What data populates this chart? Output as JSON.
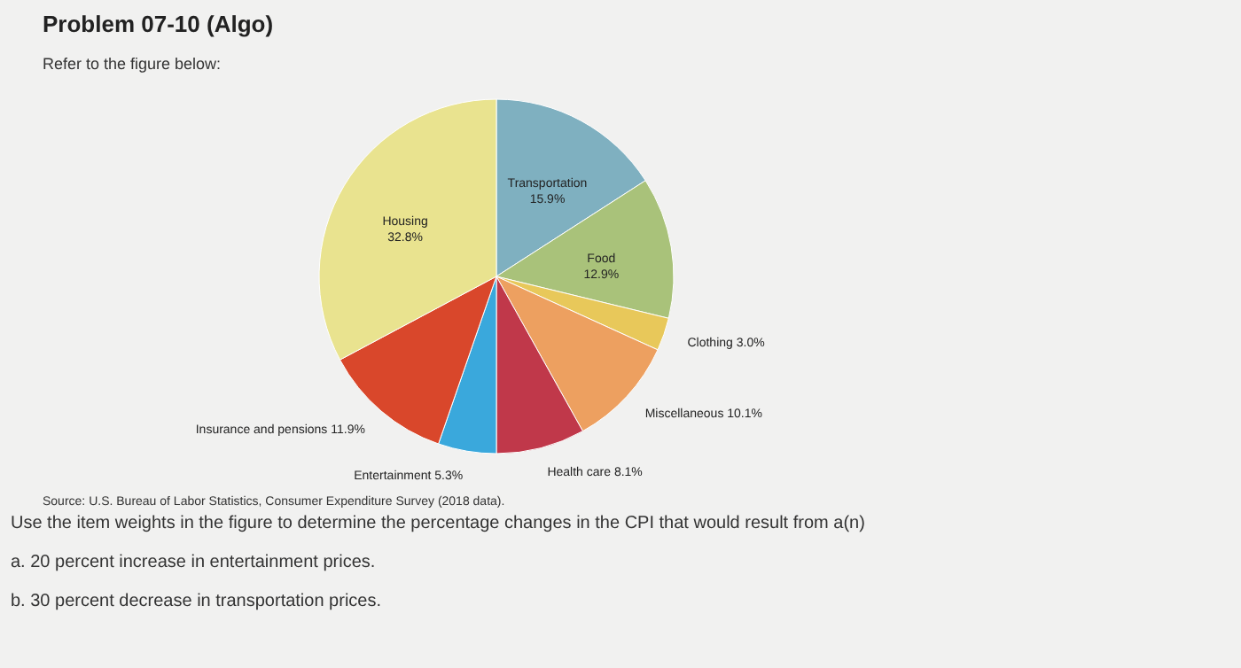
{
  "chart_data": {
    "type": "pie",
    "title": "Problem 07-10 (Algo)",
    "subtitle": "Refer to the figure below:",
    "categories": [
      "Transportation",
      "Food",
      "Clothing",
      "Miscellaneous",
      "Health care",
      "Entertainment",
      "Insurance and pensions",
      "Housing"
    ],
    "values": [
      15.9,
      12.9,
      3.0,
      10.1,
      8.1,
      5.3,
      11.9,
      32.8
    ],
    "value_labels": [
      "15.9%",
      "12.9%",
      "3.0%",
      "10.1%",
      "8.1%",
      "5.3%",
      "11.9%",
      "32.8%"
    ],
    "colors": [
      "#7fb0c0",
      "#a9c27a",
      "#e8c85a",
      "#eda060",
      "#c0384a",
      "#3aa8dc",
      "#d9472b",
      "#e9e38f"
    ],
    "annotations": [
      "Source: U.S. Bureau of Labor Statistics, Consumer Expenditure Survey (2018 data).",
      "Use the item weights in the figure to determine the percentage changes in the CPI that would result from a(n)",
      "a. 20 percent increase in entertainment prices.",
      "b. 30 percent decrease in transportation prices."
    ]
  }
}
